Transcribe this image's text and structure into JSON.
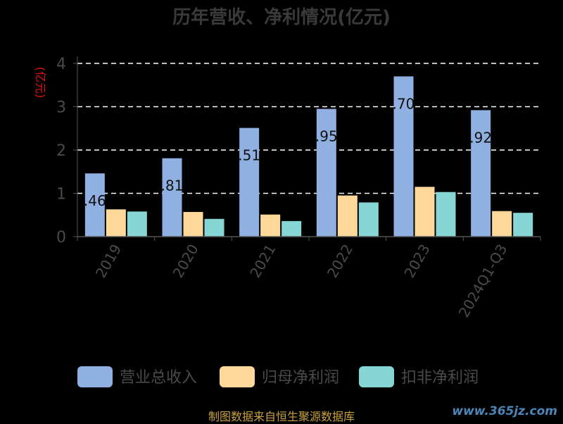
{
  "chart_data": {
    "type": "bar",
    "title": "历年营收、净利情况(亿元)",
    "ylabel": "(亿元)",
    "ylim": [
      0,
      4
    ],
    "yticks": [
      0,
      1,
      2,
      3,
      4
    ],
    "grid": true,
    "legend_position": "bottom",
    "categories": [
      "2019",
      "2020",
      "2021",
      "2022",
      "2023",
      "2024Q1-Q3"
    ],
    "series": [
      {
        "name": "营业总收入",
        "color": "#8fb0e0",
        "values": [
          1.46,
          1.81,
          2.51,
          2.95,
          3.7,
          2.92
        ],
        "labels": [
          ".46",
          ".81",
          ".51",
          ".95",
          ".70",
          ".92"
        ]
      },
      {
        "name": "归母净利润",
        "color": "#ffd89a",
        "values": [
          0.63,
          0.57,
          0.51,
          0.95,
          1.15,
          0.59
        ]
      },
      {
        "name": "扣非净利润",
        "color": "#87d6d6",
        "values": [
          0.58,
          0.41,
          0.36,
          0.79,
          1.03,
          0.55
        ]
      }
    ]
  },
  "footer": "制图数据来自恒生聚源数据库",
  "watermark": "www.365jz.com"
}
